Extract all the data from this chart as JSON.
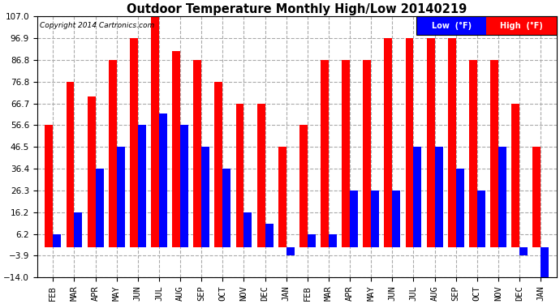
{
  "title": "Outdoor Temperature Monthly High/Low 20140219",
  "copyright": "Copyright 2014 Cartronics.com",
  "legend_low_label": "Low  (°F)",
  "legend_high_label": "High  (°F)",
  "months": [
    "FEB",
    "MAR",
    "APR",
    "MAY",
    "JUN",
    "JUL",
    "AUG",
    "SEP",
    "OCT",
    "NOV",
    "DEC",
    "JAN",
    "FEB",
    "MAR",
    "APR",
    "MAY",
    "JUN",
    "JUL",
    "AUG",
    "SEP",
    "OCT",
    "NOV",
    "DEC",
    "JAN"
  ],
  "high_values": [
    56.6,
    76.8,
    70.0,
    86.8,
    96.9,
    107.0,
    91.0,
    86.8,
    76.8,
    66.7,
    66.7,
    46.5,
    56.6,
    86.8,
    86.8,
    86.8,
    96.9,
    96.9,
    96.9,
    96.9,
    86.8,
    86.8,
    66.7,
    46.5
  ],
  "low_values": [
    6.2,
    16.2,
    36.4,
    46.5,
    56.6,
    62.0,
    56.6,
    46.5,
    36.4,
    16.2,
    11.0,
    -3.9,
    6.2,
    6.2,
    26.3,
    26.3,
    26.3,
    46.5,
    46.5,
    36.4,
    26.3,
    46.5,
    -3.9,
    -14.0
  ],
  "high_color": "#ff0000",
  "low_color": "#0000ff",
  "bg_color": "#ffffff",
  "grid_color": "#aaaaaa",
  "ylim_min": -14.0,
  "ylim_max": 107.0,
  "yticks": [
    -14.0,
    -3.9,
    6.2,
    16.2,
    26.3,
    36.4,
    46.5,
    56.6,
    66.7,
    76.8,
    86.8,
    96.9,
    107.0
  ]
}
